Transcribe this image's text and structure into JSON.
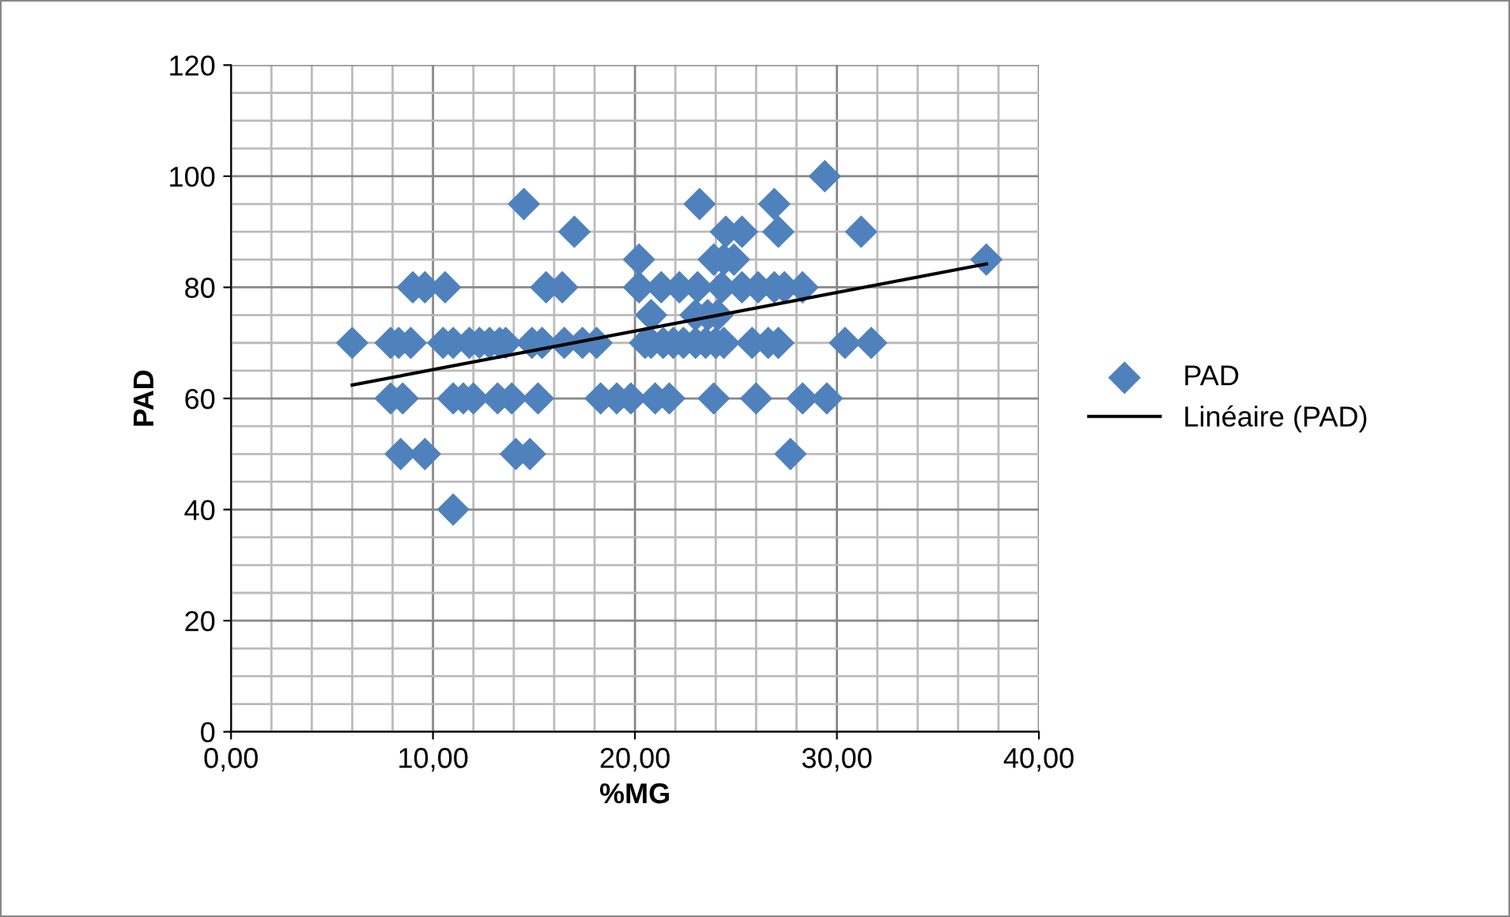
{
  "chart_data": {
    "type": "scatter",
    "xlabel": "%MG",
    "ylabel": "PAD",
    "xlim": [
      0,
      40
    ],
    "xticks": [
      {
        "value": 0,
        "label": "0,00"
      },
      {
        "value": 10,
        "label": "10,00"
      },
      {
        "value": 20,
        "label": "20,00"
      },
      {
        "value": 30,
        "label": "30,00"
      },
      {
        "value": 40,
        "label": "40,00"
      }
    ],
    "ylim": [
      0,
      120
    ],
    "yticks": [
      0,
      20,
      40,
      60,
      80,
      100,
      120
    ],
    "grid": true,
    "legend": "right",
    "marker": "diamond",
    "series": [
      {
        "name": "PAD",
        "color": "#4f81bd",
        "x": [
          6.0,
          7.9,
          8.3,
          8.9,
          10.5,
          11.0,
          11.8,
          12.3,
          12.8,
          13.3,
          13.6,
          14.9,
          15.4,
          16.5,
          17.4,
          18.1,
          20.5,
          20.8,
          21.4,
          21.9,
          22.4,
          23.0,
          23.5,
          24.0,
          24.4,
          25.8,
          26.6,
          27.1,
          30.4,
          31.7,
          7.9,
          8.5,
          11.0,
          11.5,
          12.0,
          13.2,
          13.9,
          15.2,
          18.3,
          19.1,
          19.8,
          21.0,
          21.7,
          23.9,
          26.0,
          28.3,
          29.5,
          8.4,
          9.6,
          14.1,
          14.8,
          27.7,
          11.0,
          9.0,
          9.6,
          10.6,
          15.6,
          16.4,
          20.2,
          21.3,
          22.2,
          23.1,
          24.3,
          25.3,
          26.1,
          26.9,
          27.4,
          28.3,
          20.8,
          23.0,
          23.6,
          24.1,
          20.2,
          23.9,
          24.4,
          24.9,
          37.4,
          17.0,
          24.5,
          25.3,
          27.1,
          31.2,
          14.5,
          23.2,
          26.9,
          29.4
        ],
        "values": [
          70,
          70,
          70,
          70,
          70,
          70,
          70,
          70,
          70,
          70,
          70,
          70,
          70,
          70,
          70,
          70,
          70,
          70,
          70,
          70,
          70,
          70,
          70,
          70,
          70,
          70,
          70,
          70,
          70,
          70,
          60,
          60,
          60,
          60,
          60,
          60,
          60,
          60,
          60,
          60,
          60,
          60,
          60,
          60,
          60,
          60,
          60,
          50,
          50,
          50,
          50,
          50,
          40,
          80,
          80,
          80,
          80,
          80,
          80,
          80,
          80,
          80,
          80,
          80,
          80,
          80,
          80,
          80,
          75,
          75,
          75,
          75,
          85,
          85,
          85,
          85,
          85,
          90,
          90,
          90,
          90,
          90,
          95,
          95,
          95,
          100
        ]
      },
      {
        "name": "Linéaire (PAD)",
        "type": "line",
        "color": "#000000",
        "marker": "none",
        "x": [
          6.0,
          37.4
        ],
        "values": [
          62.4,
          84.2
        ]
      }
    ]
  }
}
